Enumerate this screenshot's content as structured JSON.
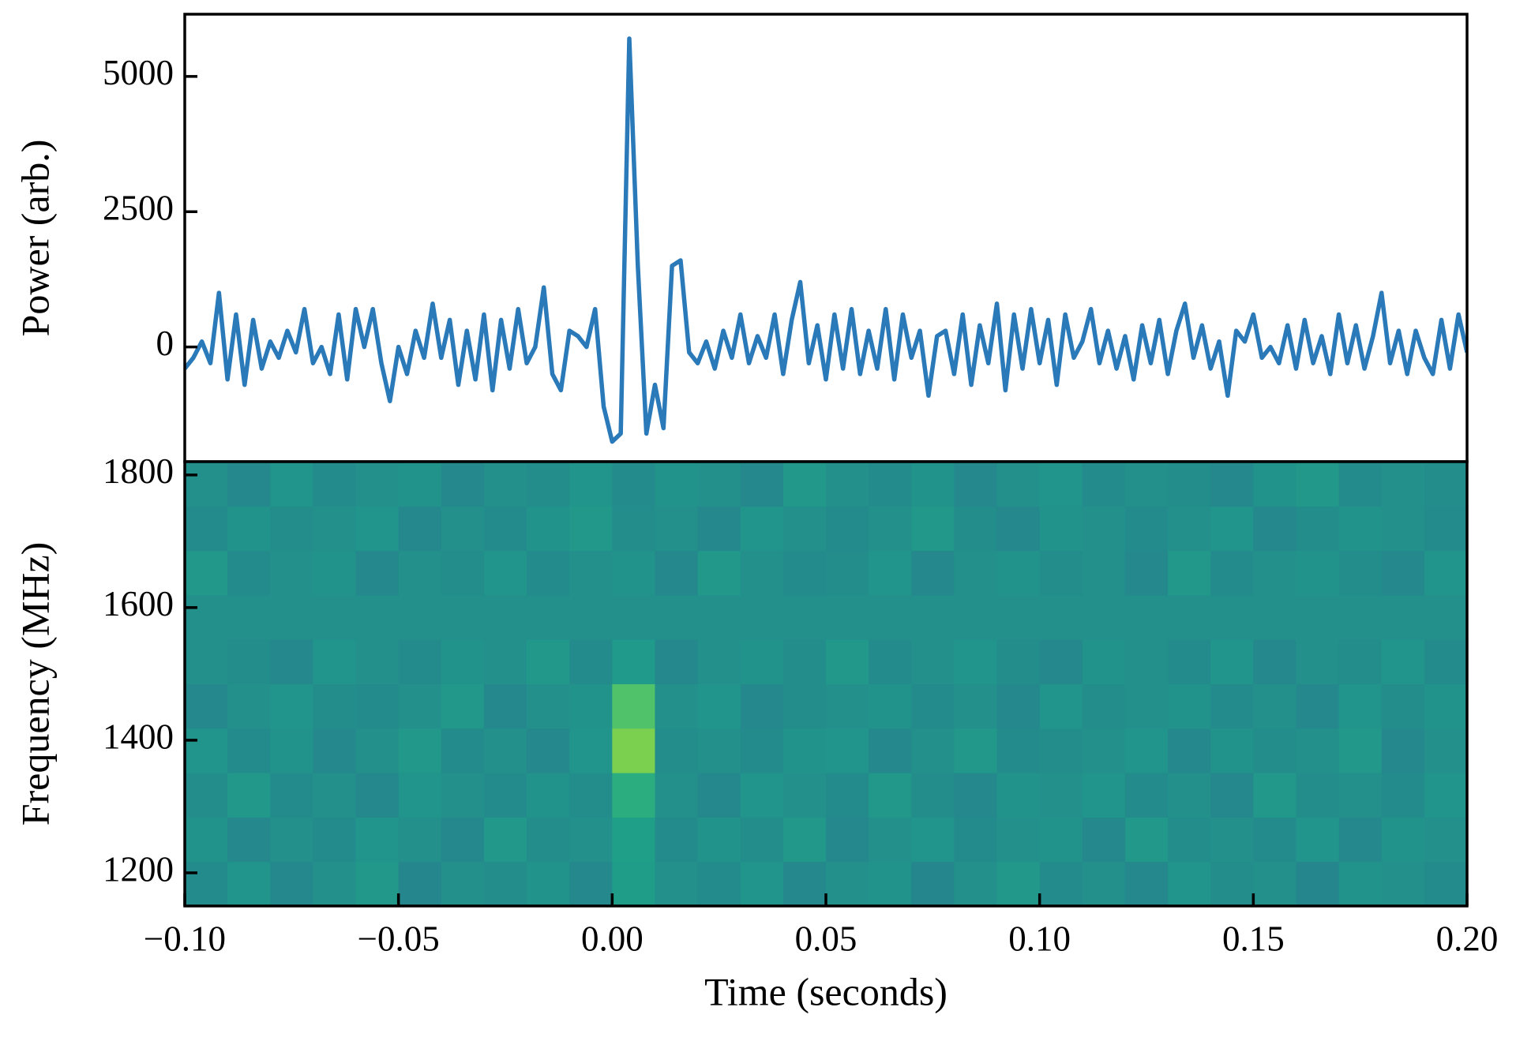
{
  "chart_data": [
    {
      "type": "line",
      "ylabel": "Power (arb.)",
      "color": "#2a79b8",
      "xlim": [
        -0.1,
        0.2
      ],
      "ylim": [
        -2120,
        6150
      ],
      "yticks": [
        0,
        2500,
        5000
      ],
      "x": [
        -0.1,
        -0.098,
        -0.096,
        -0.094,
        -0.092,
        -0.09,
        -0.088,
        -0.086,
        -0.084,
        -0.082,
        -0.08,
        -0.078,
        -0.076,
        -0.074,
        -0.072,
        -0.07,
        -0.068,
        -0.066,
        -0.064,
        -0.062,
        -0.06,
        -0.058,
        -0.056,
        -0.054,
        -0.052,
        -0.05,
        -0.048,
        -0.046,
        -0.044,
        -0.042,
        -0.04,
        -0.038,
        -0.036,
        -0.034,
        -0.032,
        -0.03,
        -0.028,
        -0.026,
        -0.024,
        -0.022,
        -0.02,
        -0.018,
        -0.016,
        -0.014,
        -0.012,
        -0.01,
        -0.008,
        -0.006,
        -0.004,
        -0.002,
        0,
        0.002,
        0.004,
        0.006,
        0.008,
        0.01,
        0.012,
        0.014,
        0.016,
        0.018,
        0.02,
        0.022,
        0.024,
        0.026,
        0.028,
        0.03,
        0.032,
        0.034,
        0.036,
        0.038,
        0.04,
        0.042,
        0.044,
        0.046,
        0.048,
        0.05,
        0.052,
        0.054,
        0.056,
        0.058,
        0.06,
        0.062,
        0.064,
        0.066,
        0.068,
        0.07,
        0.072,
        0.074,
        0.076,
        0.078,
        0.08,
        0.082,
        0.084,
        0.086,
        0.088,
        0.09,
        0.092,
        0.094,
        0.096,
        0.098,
        0.1,
        0.102,
        0.104,
        0.106,
        0.108,
        0.11,
        0.112,
        0.114,
        0.116,
        0.118,
        0.12,
        0.122,
        0.124,
        0.126,
        0.128,
        0.13,
        0.132,
        0.134,
        0.136,
        0.138,
        0.14,
        0.142,
        0.144,
        0.146,
        0.148,
        0.15,
        0.152,
        0.154,
        0.156,
        0.158,
        0.16,
        0.162,
        0.164,
        0.166,
        0.168,
        0.17,
        0.172,
        0.174,
        0.176,
        0.178,
        0.18,
        0.182,
        0.184,
        0.186,
        0.188,
        0.19,
        0.192,
        0.194,
        0.196,
        0.198,
        0.2
      ],
      "values": [
        -400,
        -200,
        100,
        -300,
        1000,
        -600,
        600,
        -700,
        500,
        -400,
        100,
        -200,
        300,
        -100,
        700,
        -300,
        0,
        -500,
        600,
        -600,
        700,
        0,
        700,
        -300,
        -1000,
        0,
        -500,
        300,
        -200,
        800,
        -200,
        500,
        -700,
        300,
        -600,
        600,
        -800,
        500,
        -400,
        700,
        -300,
        0,
        1100,
        -500,
        -800,
        300,
        200,
        0,
        700,
        -1100,
        -1750,
        -1600,
        5700,
        1500,
        -1600,
        -700,
        -1500,
        1500,
        1600,
        -100,
        -300,
        100,
        -400,
        300,
        -200,
        600,
        -300,
        200,
        -200,
        600,
        -500,
        500,
        1200,
        -300,
        400,
        -600,
        600,
        -400,
        700,
        -500,
        300,
        -400,
        700,
        -600,
        600,
        -200,
        300,
        -900,
        200,
        300,
        -500,
        600,
        -700,
        400,
        -300,
        800,
        -800,
        600,
        -400,
        700,
        -300,
        500,
        -700,
        600,
        -200,
        100,
        700,
        -300,
        300,
        -400,
        200,
        -600,
        400,
        -300,
        500,
        -500,
        300,
        800,
        -200,
        400,
        -400,
        100,
        -900,
        300,
        100,
        600,
        -200,
        0,
        -300,
        400,
        -400,
        500,
        -300,
        200,
        -500,
        600,
        -300,
        400,
        -400,
        200,
        1000,
        -300,
        300,
        -500,
        300,
        -200,
        -500,
        500,
        -400,
        600,
        -100
      ]
    },
    {
      "type": "heatmap",
      "xlabel": "Time (seconds)",
      "ylabel": "Frequency (MHz)",
      "colormap": "viridis",
      "xlim": [
        -0.1,
        0.2
      ],
      "ylim": [
        1150,
        1820
      ],
      "xticks": [
        {
          "value": -0.1,
          "label": "−0.10"
        },
        {
          "value": -0.05,
          "label": "−0.05"
        },
        {
          "value": 0,
          "label": "0.00"
        },
        {
          "value": 0.05,
          "label": "0.05"
        },
        {
          "value": 0.1,
          "label": "0.10"
        },
        {
          "value": 0.15,
          "label": "0.15"
        },
        {
          "value": 0.2,
          "label": "0.20"
        }
      ],
      "yticks": [
        1200,
        1400,
        1600,
        1800
      ],
      "xbins": [
        -0.1,
        -0.09,
        -0.08,
        -0.07,
        -0.06,
        -0.05,
        -0.04,
        -0.03,
        -0.02,
        -0.01,
        0,
        0.01,
        0.02,
        0.03,
        0.04,
        0.05,
        0.06,
        0.07,
        0.08,
        0.09,
        0.1,
        0.11,
        0.12,
        0.13,
        0.14,
        0.15,
        0.16,
        0.17,
        0.18,
        0.19,
        0.2
      ],
      "ybins": [
        1150,
        1217,
        1284,
        1351,
        1418,
        1485,
        1552,
        1619,
        1686,
        1753,
        1820
      ],
      "z": [
        [
          0.48,
          0.52,
          0.47,
          0.5,
          0.53,
          0.46,
          0.5,
          0.49,
          0.51,
          0.47,
          0.55,
          0.5,
          0.48,
          0.52,
          0.47,
          0.5,
          0.51,
          0.46,
          0.5,
          0.53,
          0.48,
          0.5,
          0.47,
          0.52,
          0.49,
          0.5,
          0.46,
          0.51,
          0.5,
          0.48
        ],
        [
          0.51,
          0.47,
          0.5,
          0.48,
          0.52,
          0.5,
          0.47,
          0.53,
          0.49,
          0.5,
          0.56,
          0.48,
          0.51,
          0.49,
          0.53,
          0.47,
          0.5,
          0.52,
          0.48,
          0.5,
          0.51,
          0.47,
          0.53,
          0.49,
          0.5,
          0.48,
          0.52,
          0.47,
          0.51,
          0.5
        ],
        [
          0.49,
          0.53,
          0.48,
          0.5,
          0.47,
          0.52,
          0.5,
          0.48,
          0.51,
          0.49,
          0.62,
          0.5,
          0.47,
          0.52,
          0.5,
          0.48,
          0.53,
          0.49,
          0.47,
          0.51,
          0.5,
          0.52,
          0.48,
          0.5,
          0.47,
          0.53,
          0.49,
          0.5,
          0.48,
          0.52
        ],
        [
          0.52,
          0.48,
          0.51,
          0.47,
          0.5,
          0.53,
          0.48,
          0.5,
          0.47,
          0.52,
          0.8,
          0.49,
          0.5,
          0.48,
          0.51,
          0.52,
          0.47,
          0.5,
          0.53,
          0.48,
          0.49,
          0.5,
          0.52,
          0.47,
          0.51,
          0.49,
          0.5,
          0.53,
          0.47,
          0.5
        ],
        [
          0.47,
          0.5,
          0.52,
          0.49,
          0.48,
          0.5,
          0.53,
          0.47,
          0.5,
          0.51,
          0.72,
          0.5,
          0.52,
          0.47,
          0.49,
          0.5,
          0.51,
          0.48,
          0.5,
          0.47,
          0.52,
          0.49,
          0.5,
          0.51,
          0.48,
          0.5,
          0.47,
          0.52,
          0.49,
          0.51
        ],
        [
          0.5,
          0.49,
          0.47,
          0.52,
          0.5,
          0.48,
          0.51,
          0.5,
          0.53,
          0.48,
          0.54,
          0.47,
          0.5,
          0.51,
          0.49,
          0.53,
          0.48,
          0.5,
          0.52,
          0.49,
          0.47,
          0.51,
          0.5,
          0.48,
          0.52,
          0.47,
          0.5,
          0.49,
          0.52,
          0.48
        ],
        [
          0.5,
          0.5,
          0.5,
          0.5,
          0.5,
          0.5,
          0.5,
          0.5,
          0.5,
          0.5,
          0.5,
          0.5,
          0.5,
          0.5,
          0.5,
          0.5,
          0.5,
          0.5,
          0.5,
          0.5,
          0.5,
          0.5,
          0.5,
          0.5,
          0.5,
          0.5,
          0.5,
          0.5,
          0.5,
          0.5
        ],
        [
          0.53,
          0.48,
          0.5,
          0.51,
          0.47,
          0.5,
          0.49,
          0.52,
          0.48,
          0.5,
          0.51,
          0.47,
          0.53,
          0.5,
          0.48,
          0.49,
          0.52,
          0.47,
          0.5,
          0.51,
          0.49,
          0.5,
          0.47,
          0.53,
          0.48,
          0.5,
          0.51,
          0.49,
          0.47,
          0.52
        ],
        [
          0.48,
          0.51,
          0.49,
          0.5,
          0.52,
          0.47,
          0.5,
          0.48,
          0.51,
          0.53,
          0.49,
          0.5,
          0.47,
          0.52,
          0.5,
          0.48,
          0.5,
          0.53,
          0.49,
          0.47,
          0.51,
          0.5,
          0.48,
          0.5,
          0.52,
          0.47,
          0.49,
          0.51,
          0.5,
          0.48
        ],
        [
          0.5,
          0.47,
          0.52,
          0.48,
          0.5,
          0.51,
          0.47,
          0.5,
          0.49,
          0.52,
          0.48,
          0.51,
          0.5,
          0.47,
          0.53,
          0.5,
          0.48,
          0.51,
          0.47,
          0.5,
          0.52,
          0.48,
          0.5,
          0.49,
          0.47,
          0.51,
          0.53,
          0.48,
          0.5,
          0.49
        ]
      ]
    }
  ]
}
